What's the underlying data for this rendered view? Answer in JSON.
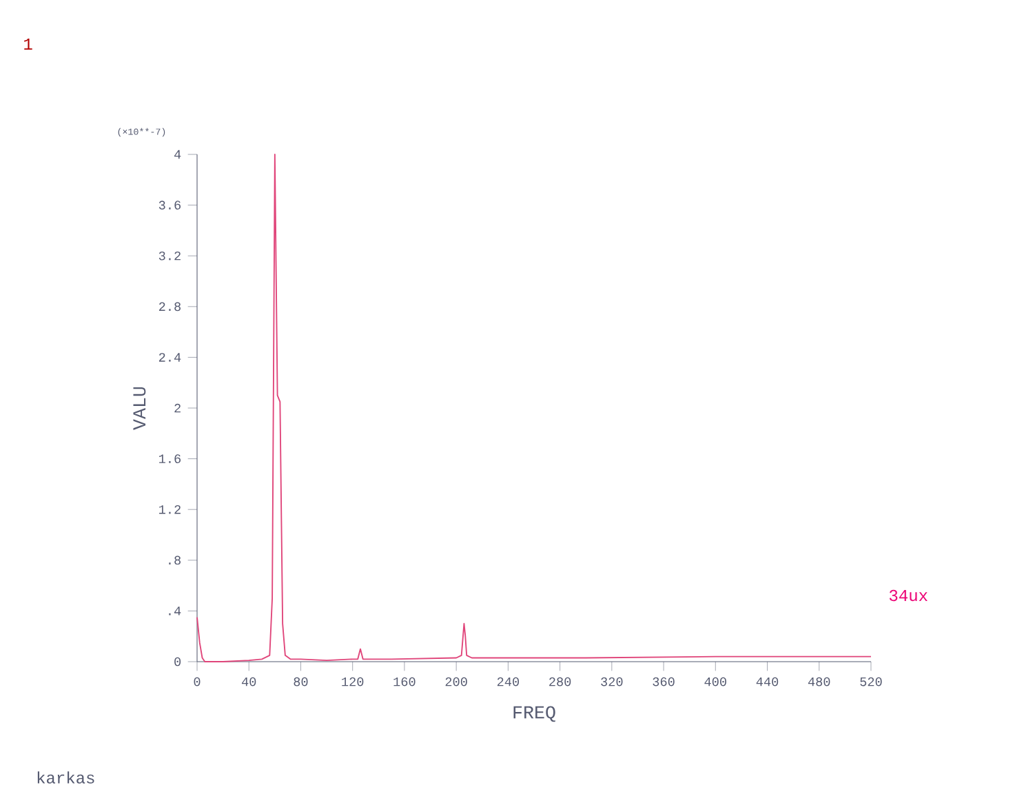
{
  "chart_data": {
    "type": "line",
    "xlabel": "FREQ",
    "ylabel": "VALU",
    "annotations": [
      "1",
      "(×10**-7)",
      "34ux",
      "karkas"
    ],
    "xlim": [
      0,
      520
    ],
    "ylim": [
      0,
      4
    ],
    "xticks": [
      0,
      40,
      80,
      120,
      160,
      200,
      240,
      280,
      320,
      360,
      400,
      440,
      480,
      520
    ],
    "yticks": [
      0,
      {
        "value": 0.4,
        "label": ".4"
      },
      {
        "value": 0.8,
        "label": ".8"
      },
      1.2,
      1.6,
      2,
      2.4,
      2.8,
      3.2,
      3.6,
      4
    ],
    "line_style": "solid",
    "series": [
      {
        "color": "#e0457a",
        "x": [
          0,
          2,
          4,
          6,
          20,
          40,
          50,
          56,
          58,
          60,
          62,
          64,
          66,
          68,
          72,
          80,
          100,
          120,
          124,
          126,
          128,
          150,
          200,
          204,
          206,
          207,
          208,
          212,
          250,
          300,
          400,
          520
        ],
        "values": [
          0.35,
          0.15,
          0.03,
          0,
          0,
          0.01,
          0.02,
          0.05,
          0.5,
          4.0,
          2.1,
          2.05,
          0.3,
          0.05,
          0.02,
          0.02,
          0.01,
          0.02,
          0.02,
          0.1,
          0.02,
          0.02,
          0.03,
          0.05,
          0.3,
          0.2,
          0.05,
          0.03,
          0.03,
          0.03,
          0.04,
          0.04
        ]
      }
    ]
  }
}
